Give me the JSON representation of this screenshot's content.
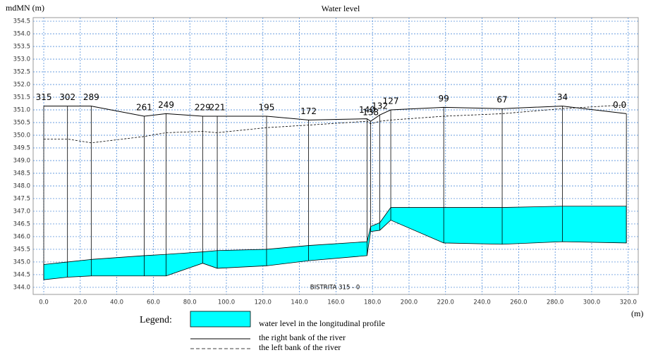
{
  "chart_data": {
    "type": "profile",
    "title": "Water level",
    "y_label": "mdMN (m)",
    "x_label": "(m)",
    "annotation": "BISTRITA  315 - 0",
    "legend_title": "Legend:",
    "section_labels": [
      "315",
      "302",
      "289",
      "261",
      "249",
      "229",
      "221",
      "195",
      "172",
      "140",
      "138",
      "132",
      "127",
      "99",
      "67",
      "34",
      "0.0"
    ],
    "x": [
      0,
      13,
      26,
      55,
      67,
      87,
      95,
      122,
      145,
      177,
      179,
      184,
      190,
      219,
      251,
      284,
      319
    ],
    "series": [
      {
        "name": "water level in the longitudinal profile",
        "color": "#00ffff",
        "values": [
          344.9,
          345.0,
          345.1,
          345.25,
          345.3,
          345.4,
          345.45,
          345.5,
          345.65,
          345.8,
          346.4,
          346.55,
          347.15,
          347.15,
          347.15,
          347.2,
          347.2
        ],
        "bed": [
          344.3,
          344.4,
          344.45,
          344.45,
          344.45,
          344.95,
          344.75,
          344.85,
          345.05,
          345.25,
          346.2,
          346.25,
          346.65,
          345.75,
          345.7,
          345.8,
          345.75
        ]
      },
      {
        "name": "the right bank of the river",
        "color": "#000000",
        "values": [
          351.15,
          351.15,
          351.15,
          350.75,
          350.85,
          350.75,
          350.75,
          350.75,
          350.6,
          350.65,
          350.55,
          350.8,
          351.0,
          351.1,
          351.05,
          351.15,
          350.85
        ]
      },
      {
        "name": "the left bank of the river",
        "color": "#000000",
        "dashed": true,
        "values": [
          349.85,
          349.85,
          349.7,
          349.95,
          350.1,
          350.15,
          350.1,
          350.3,
          350.4,
          350.55,
          350.45,
          350.55,
          350.6,
          350.75,
          350.85,
          351.05,
          351.2
        ]
      }
    ],
    "xlim": [
      -5.8,
      325.5
    ],
    "ylim": [
      343.72,
      354.64
    ],
    "xticks": [
      {
        "value": 0,
        "label": "0.0"
      },
      {
        "value": 20,
        "label": "20.0"
      },
      {
        "value": 40,
        "label": "40.0"
      },
      {
        "value": 60,
        "label": "60.0"
      },
      {
        "value": 80,
        "label": "80.0"
      },
      {
        "value": 100,
        "label": "100.0"
      },
      {
        "value": 120,
        "label": "120.0"
      },
      {
        "value": 140,
        "label": "140.0"
      },
      {
        "value": 160,
        "label": "160.0"
      },
      {
        "value": 180,
        "label": "180.0"
      },
      {
        "value": 200,
        "label": "200.0"
      },
      {
        "value": 220,
        "label": "220.0"
      },
      {
        "value": 240,
        "label": "240.0"
      },
      {
        "value": 260,
        "label": "260.0"
      },
      {
        "value": 280,
        "label": "280.0"
      },
      {
        "value": 300,
        "label": "300.0"
      },
      {
        "value": 320,
        "label": "320.0"
      }
    ],
    "yticks": [
      {
        "value": 344,
        "label": "344.0"
      },
      344.5,
      {
        "value": 345,
        "label": "345.0"
      },
      345.5,
      {
        "value": 346,
        "label": "346.0"
      },
      346.5,
      {
        "value": 347,
        "label": "347.0"
      },
      347.5,
      {
        "value": 348,
        "label": "348.0"
      },
      348.5,
      {
        "value": 349,
        "label": "349.0"
      },
      349.5,
      {
        "value": 350,
        "label": "350.0"
      },
      350.5,
      {
        "value": 351,
        "label": "351.0"
      },
      351.5,
      {
        "value": 352,
        "label": "352.0"
      },
      352.5,
      {
        "value": 353,
        "label": "353.0"
      },
      353.5,
      {
        "value": 354,
        "label": "354.0"
      },
      354.5
    ],
    "grid": true,
    "grid_color": "#3a7fd5"
  }
}
